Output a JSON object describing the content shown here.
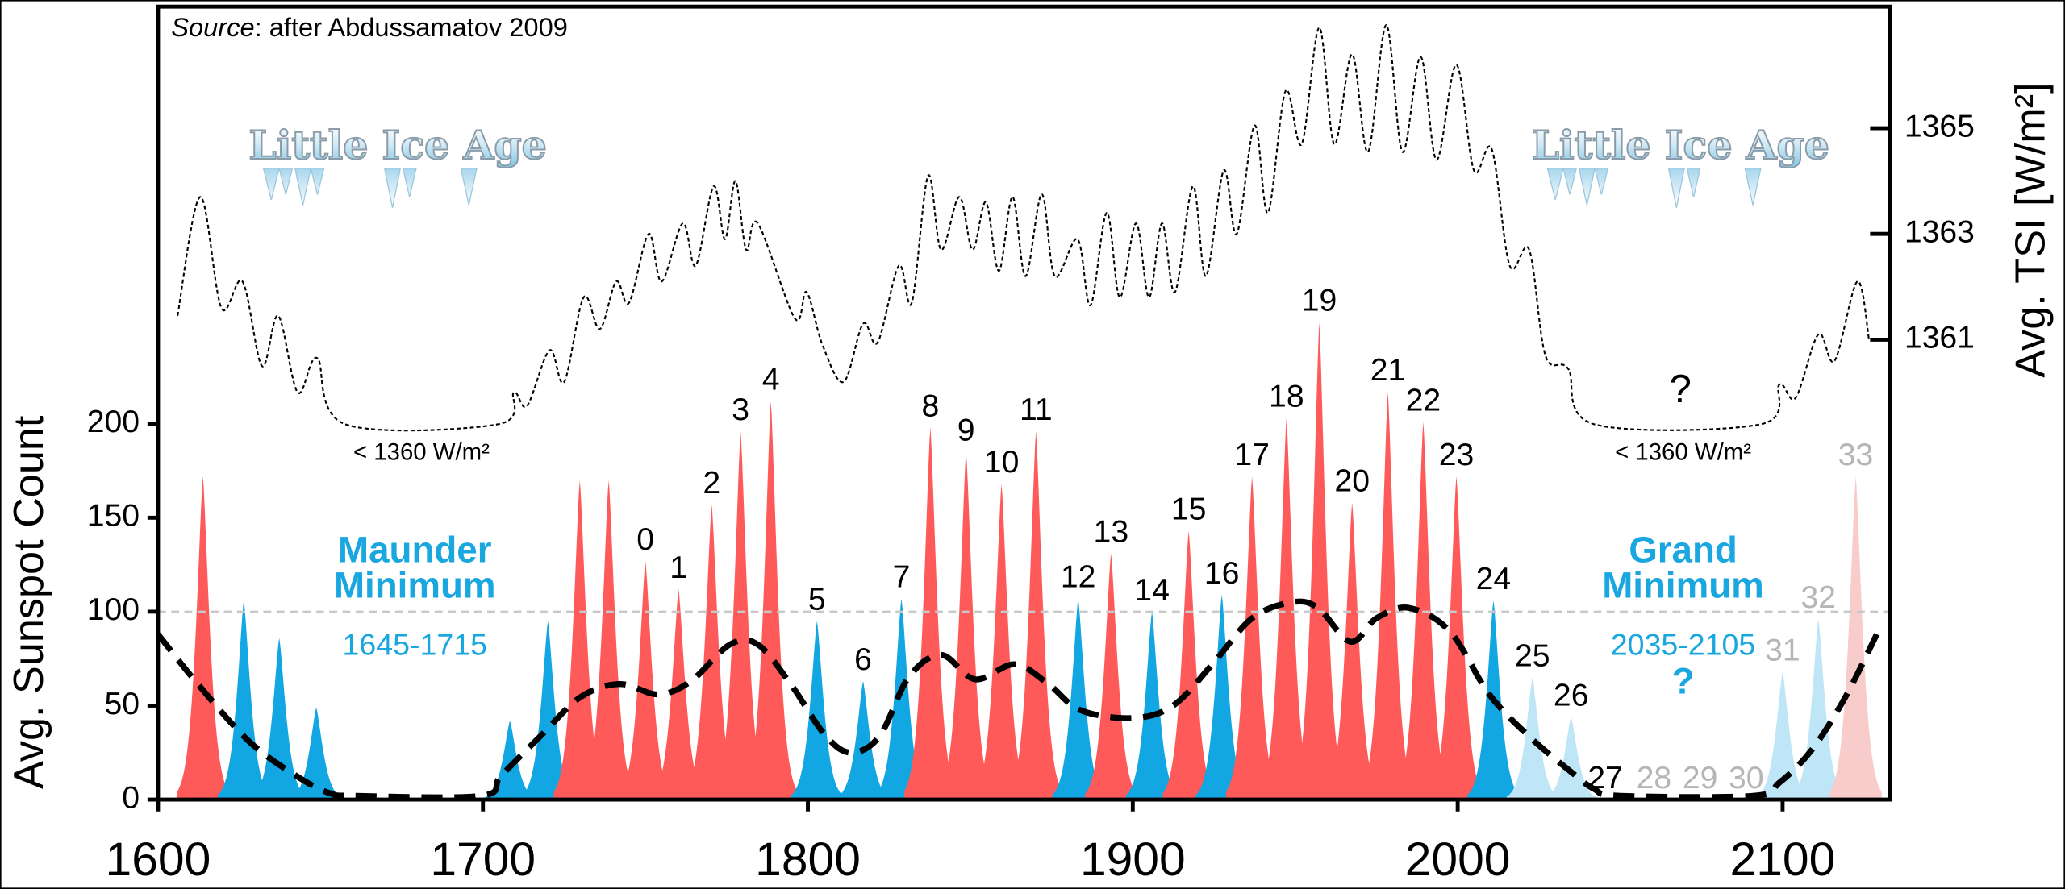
{
  "chart_data": {
    "type": "area",
    "source_label": "Source",
    "source": ":  after  Abdussamatov 2009",
    "y_label": "Avg.  Sunspot  Count",
    "y2_label": "Avg. TSI  [W/m²]",
    "xlim": [
      1600,
      2133
    ],
    "xticks": [
      1600,
      1700,
      1800,
      1900,
      2000,
      2100
    ],
    "ylim": [
      0,
      422
    ],
    "yticks": [
      0,
      50,
      100,
      150,
      200
    ],
    "y2lim": [
      1352.3,
      1367.3
    ],
    "y2ticks": [
      1361,
      1363,
      1365
    ],
    "reference_line": 100,
    "reference_color": "#c8c8c8",
    "cycles": {
      "x": [
        1613.8,
        1626.4,
        1637.3,
        1648.7,
        1708.3,
        1720,
        1729.8,
        1738.7,
        1750,
        1760.2,
        1770.4,
        1779.3,
        1788.6,
        1802.8,
        1817,
        1828.8,
        1837.7,
        1848.7,
        1859.6,
        1870.2,
        1883.2,
        1893.3,
        1905.9,
        1917.2,
        1927.4,
        1936.7,
        1947.3,
        1957.4,
        1967.5,
        1978.5,
        1989.4,
        1999.6,
        2011,
        2023,
        2034.9,
        2045.4,
        2060.4,
        2074.6,
        2088.8,
        2100,
        2111,
        2122.5
      ],
      "values": [
        172,
        106,
        86,
        49,
        42,
        95,
        170,
        170,
        127,
        112,
        157,
        196,
        212,
        95,
        63,
        107,
        198,
        185,
        168,
        196,
        107,
        131,
        100,
        143,
        109,
        172,
        203,
        254,
        158,
        217,
        201,
        172,
        106,
        65,
        44,
        0,
        0,
        0,
        0,
        68,
        96,
        172
      ],
      "colors": [
        "#ff5a5a",
        "#12a6e2",
        "#12a6e2",
        "#12a6e2",
        "#12a6e2",
        "#12a6e2",
        "#ff5a5a",
        "#ff5a5a",
        "#ff5a5a",
        "#ff5a5a",
        "#ff5a5a",
        "#ff5a5a",
        "#ff5a5a",
        "#12a6e2",
        "#12a6e2",
        "#12a6e2",
        "#ff5a5a",
        "#ff5a5a",
        "#ff5a5a",
        "#ff5a5a",
        "#12a6e2",
        "#ff5a5a",
        "#12a6e2",
        "#ff5a5a",
        "#12a6e2",
        "#ff5a5a",
        "#ff5a5a",
        "#ff5a5a",
        "#ff5a5a",
        "#ff5a5a",
        "#ff5a5a",
        "#ff5a5a",
        "#12a6e2",
        "#bfe6f7",
        "#bfe6f7",
        "#bfe6f7",
        "#bfe6f7",
        "#bfe6f7",
        "#bfe6f7",
        "#bfe6f7",
        "#bfe6f7",
        "#f9cccc"
      ],
      "labels": [
        null,
        null,
        null,
        null,
        null,
        null,
        null,
        null,
        "0",
        "1",
        "2",
        "3",
        "4",
        "5",
        "6",
        "7",
        "8",
        "9",
        "10",
        "11",
        "12",
        "13",
        "14",
        "15",
        "16",
        "17",
        "18",
        "19",
        "20",
        "21",
        "22",
        "23",
        "24",
        "25",
        "26",
        "27",
        "28",
        "29",
        "30",
        "31",
        "32",
        "33"
      ],
      "label_colors": [
        null,
        null,
        null,
        null,
        null,
        null,
        null,
        null,
        "#000000",
        "#000000",
        "#000000",
        "#000000",
        "#000000",
        "#000000",
        "#000000",
        "#000000",
        "#000000",
        "#000000",
        "#000000",
        "#000000",
        "#000000",
        "#000000",
        "#000000",
        "#000000",
        "#000000",
        "#000000",
        "#000000",
        "#000000",
        "#000000",
        "#000000",
        "#000000",
        "#000000",
        "#000000",
        "#000000",
        "#000000",
        "#000000",
        "#b5b5b5",
        "#b5b5b5",
        "#b5b5b5",
        "#b5b5b5",
        "#b5b5b5",
        "#b5b5b5"
      ]
    },
    "average": {
      "color": "#000000",
      "x": [
        1600,
        1612,
        1628,
        1642.6,
        1652.7,
        1661,
        1699.4,
        1705.5,
        1717.6,
        1730,
        1742,
        1754,
        1764,
        1776,
        1784.6,
        1794.7,
        1805,
        1813,
        1822,
        1831,
        1841,
        1851.5,
        1863.7,
        1874,
        1884,
        1900,
        1912.4,
        1924.5,
        1936.7,
        1948.9,
        1957,
        1967,
        1975,
        1985,
        1997.6,
        2009.7,
        2022,
        2034,
        2042,
        2050,
        2091,
        2099,
        2109,
        2119.3,
        2129.4
      ],
      "values": [
        88,
        62,
        31,
        12.6,
        3.5,
        2,
        2,
        12.6,
        33.6,
        54.5,
        61.5,
        56,
        63,
        82.5,
        82.5,
        61.5,
        35,
        25,
        33.6,
        65,
        77,
        64,
        72,
        61.5,
        47.5,
        43.4,
        50,
        72,
        96.5,
        105,
        102,
        84,
        96.5,
        102,
        89.5,
        56,
        33.6,
        16,
        5.6,
        2,
        2,
        9,
        26.5,
        54.5,
        89.5
      ]
    },
    "tsi": {
      "axis": "y2",
      "color": "#000000",
      "x": [
        1606,
        1613,
        1619.5,
        1626,
        1632,
        1637,
        1643,
        1649,
        1657.6,
        1704.7,
        1709.5,
        1713.6,
        1720.5,
        1725,
        1731,
        1736,
        1741,
        1745,
        1751,
        1755,
        1761.5,
        1765.5,
        1771,
        1774.5,
        1777.7,
        1781,
        1784.6,
        1796,
        1799.6,
        1804.5,
        1811,
        1817,
        1821.5,
        1828,
        1832,
        1837,
        1841,
        1846.6,
        1850.7,
        1854.8,
        1858.8,
        1863,
        1867,
        1872,
        1876,
        1883,
        1887,
        1892,
        1896,
        1901,
        1905,
        1909,
        1913,
        1918.5,
        1922.5,
        1928,
        1932,
        1937.5,
        1941.6,
        1947,
        1952,
        1957.4,
        1962,
        1967.5,
        1972.4,
        1978,
        1983,
        1988.6,
        1993.5,
        1999.6,
        2005,
        2010.5,
        2016,
        2022,
        2027,
        2034,
        2042,
        2093.3,
        2099,
        2104,
        2111,
        2116,
        2123,
        2126.6
      ],
      "values": [
        1361.45,
        1363.7,
        1361.6,
        1362.1,
        1360.5,
        1361.45,
        1360.0,
        1360.65,
        1359.4,
        1359.4,
        1360.0,
        1359.75,
        1360.8,
        1360.2,
        1361.8,
        1361.2,
        1362.1,
        1361.7,
        1363.0,
        1362.1,
        1363.2,
        1362.4,
        1363.9,
        1362.9,
        1364.0,
        1362.7,
        1363.2,
        1361.4,
        1361.9,
        1360.9,
        1360.2,
        1361.3,
        1360.95,
        1362.4,
        1361.7,
        1364.1,
        1362.7,
        1363.7,
        1362.7,
        1363.6,
        1362.3,
        1363.7,
        1362.2,
        1363.75,
        1362.2,
        1362.9,
        1361.65,
        1363.4,
        1361.8,
        1363.2,
        1361.8,
        1363.2,
        1361.9,
        1363.9,
        1362.2,
        1364.2,
        1363.0,
        1365.05,
        1363.4,
        1365.7,
        1364.7,
        1366.9,
        1364.7,
        1366.4,
        1364.55,
        1366.95,
        1364.55,
        1366.35,
        1364.4,
        1366.2,
        1364.2,
        1364.6,
        1362.4,
        1362.7,
        1360.7,
        1360.45,
        1359.4,
        1359.4,
        1360.15,
        1359.9,
        1361.1,
        1360.6,
        1362.1,
        1361.0
      ]
    },
    "annotations": {
      "little_ice_age": [
        "Little Ice Age",
        "Little Ice Age"
      ],
      "tsi_floor": [
        "< 1360 W/m²",
        "< 1360 W/m²"
      ],
      "tsi_question": "?",
      "maunder_minimum": [
        "Maunder",
        "Minimum"
      ],
      "maunder_period": "1645-1715",
      "grand_minimum": [
        "Grand",
        "Minimum"
      ],
      "grand_period": "2035-2105",
      "grand_question": "?"
    }
  }
}
